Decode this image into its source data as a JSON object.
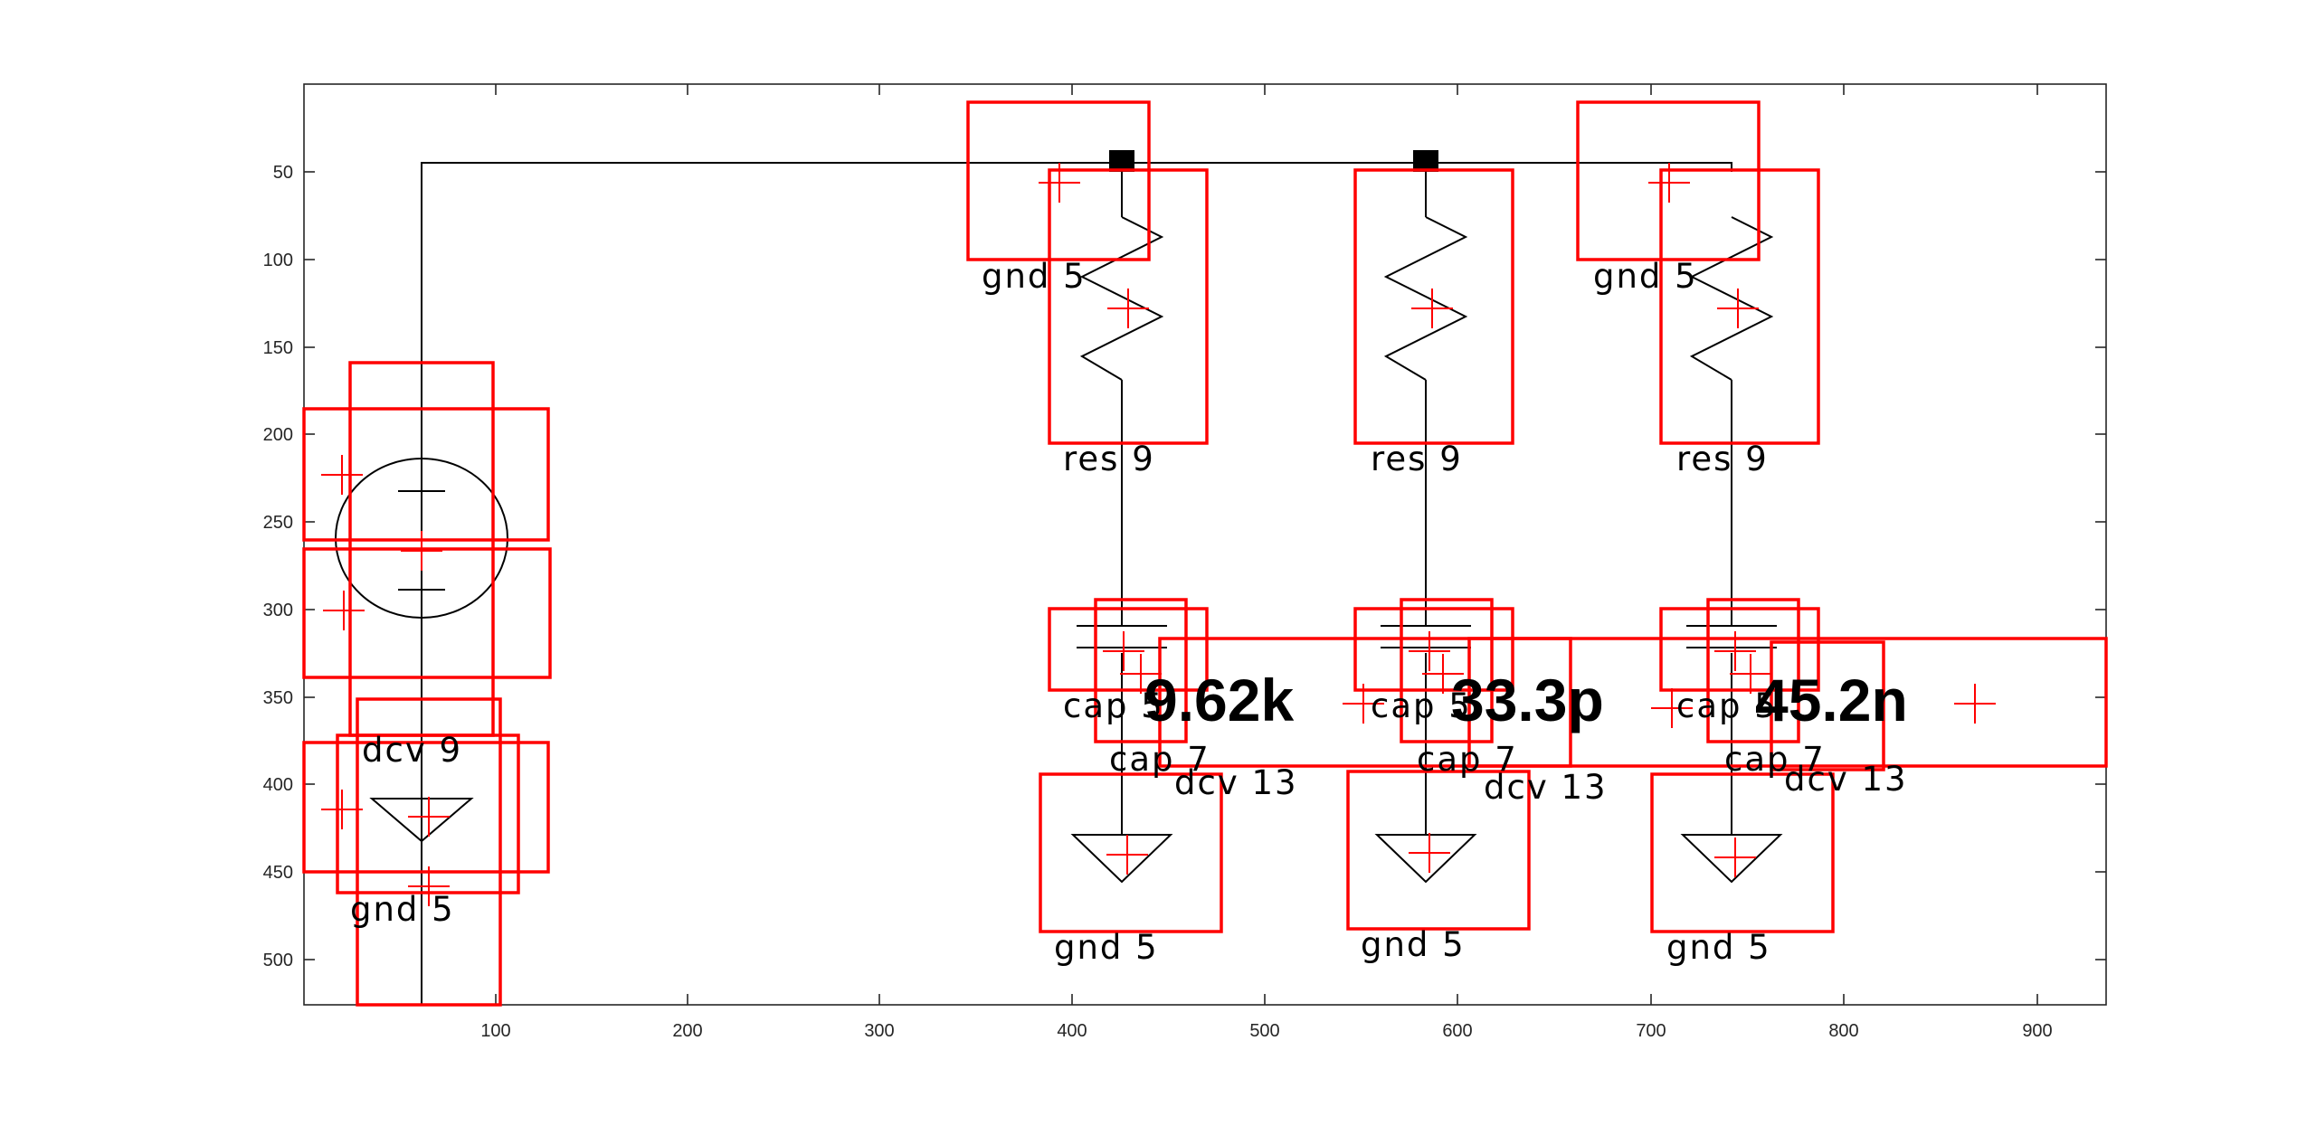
{
  "axes": {
    "x_ticks": [
      "100",
      "200",
      "300",
      "400",
      "500",
      "600",
      "700",
      "800",
      "900"
    ],
    "y_ticks": [
      "50",
      "100",
      "150",
      "200",
      "250",
      "300",
      "350",
      "400",
      "450",
      "500"
    ]
  },
  "labels": {
    "gnd_top_1": "gnd 5",
    "gnd_top_2": "gnd 5",
    "res_1": "res 9",
    "res_2": "res 9",
    "res_3": "res 9",
    "dcv_source": "dcv 9",
    "gnd_left": "gnd 5",
    "cap5_1": "cap 5",
    "cap5_2": "cap 5",
    "cap5_3": "cap 5",
    "cap7_1": "cap 7",
    "cap7_2": "cap 7",
    "cap7_3": "cap 7",
    "dcv13_1": "dcv 13",
    "dcv13_2": "dcv 13",
    "dcv13_3": "dcv 13",
    "gnd_bottom_1": "gnd 5",
    "gnd_bottom_2": "gnd 5",
    "gnd_bottom_3": "gnd 5",
    "value_1": "9.62k",
    "value_2": "33.3p",
    "value_3": "45.2n"
  },
  "colors": {
    "bbox": "#ff0000",
    "wire": "#000000",
    "axis": "#262626"
  }
}
